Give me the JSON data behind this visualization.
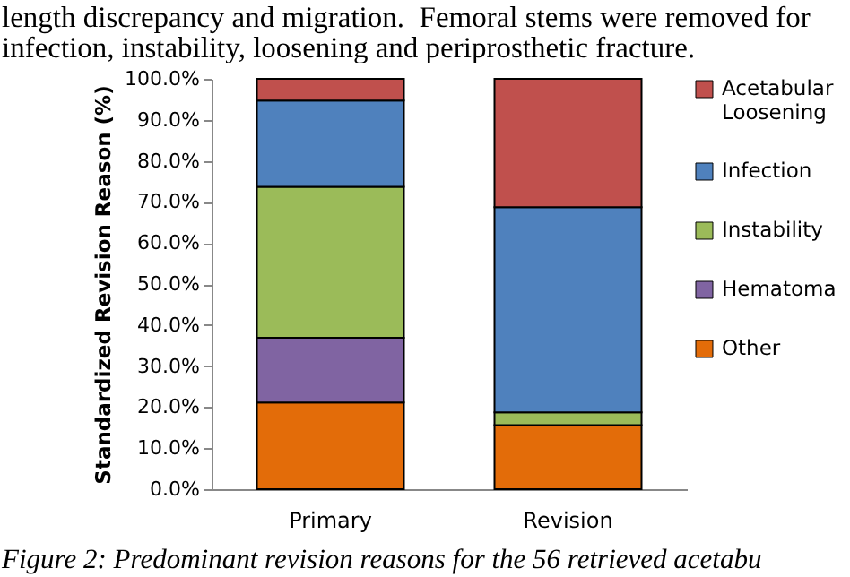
{
  "chart_data": {
    "type": "bar",
    "stacked": true,
    "ylabel": "Standardized Revision Reason (%)",
    "categories": [
      "Primary",
      "Revision"
    ],
    "series": [
      {
        "name": "Other",
        "color": "#e36c09",
        "values": [
          21.1,
          15.6
        ]
      },
      {
        "name": "Hematoma",
        "color": "#8064a2",
        "values": [
          15.8,
          0
        ]
      },
      {
        "name": "Instability",
        "color": "#9bbb59",
        "values": [
          36.8,
          3.1
        ]
      },
      {
        "name": "Infection",
        "color": "#4f81bd",
        "values": [
          21.0,
          50.0
        ]
      },
      {
        "name": "Acetabular Loosening",
        "color": "#c0504d",
        "values": [
          5.3,
          31.3
        ]
      }
    ],
    "ylim": [
      0,
      100
    ],
    "yticks": [
      {
        "value": 0,
        "label": "0.0%"
      },
      {
        "value": 10,
        "label": "10.0%"
      },
      {
        "value": 20,
        "label": "20.0%"
      },
      {
        "value": 30,
        "label": "30.0%"
      },
      {
        "value": 40,
        "label": "40.0%"
      },
      {
        "value": 50,
        "label": "50.0%"
      },
      {
        "value": 60,
        "label": "60.0%"
      },
      {
        "value": 70,
        "label": "70.0%"
      },
      {
        "value": 80,
        "label": "80.0%"
      },
      {
        "value": 90,
        "label": "90.0%"
      },
      {
        "value": 100,
        "label": "100.0%"
      }
    ],
    "grid": false,
    "legend": "right",
    "annotations": [
      "length discrepancy and migration.  Femoral stems were removed for infection, instability, loosening and periprosthetic fracture.",
      "Figure 2:  Predominant revision reasons for the 56 retrieved acetabu"
    ]
  }
}
